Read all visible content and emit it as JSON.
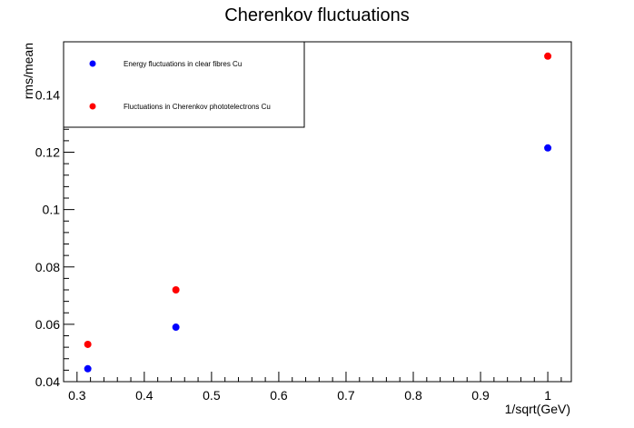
{
  "chart_data": {
    "type": "scatter",
    "title": "Cherenkov fluctuations",
    "xlabel": "1/sqrt(GeV)",
    "ylabel": "rms/mean",
    "xlim": [
      0.28,
      1.035
    ],
    "ylim": [
      0.04,
      0.1585
    ],
    "x_ticks": [
      0.3,
      0.4,
      0.5,
      0.6,
      0.7,
      0.8,
      0.9,
      1
    ],
    "x_tick_labels": [
      "0.3",
      "0.4",
      "0.5",
      "0.6",
      "0.7",
      "0.8",
      "0.9",
      "1"
    ],
    "y_ticks": [
      0.04,
      0.06,
      0.08,
      0.1,
      0.12,
      0.14
    ],
    "y_tick_labels": [
      "0.04",
      "0.06",
      "0.08",
      "0.1",
      "0.12",
      "0.14"
    ],
    "grid": false,
    "legend_position": "top-left",
    "series": [
      {
        "name": "Energy fluctuations in clear fibres Cu",
        "color": "#0000ff",
        "x": [
          0.316,
          0.447,
          1.0
        ],
        "y": [
          0.0445,
          0.059,
          0.1215
        ]
      },
      {
        "name": "Fluctuations in Cherenkov phototelectrons Cu",
        "color": "#ff0000",
        "x": [
          0.316,
          0.447,
          1.0
        ],
        "y": [
          0.053,
          0.072,
          0.1535
        ]
      }
    ]
  }
}
